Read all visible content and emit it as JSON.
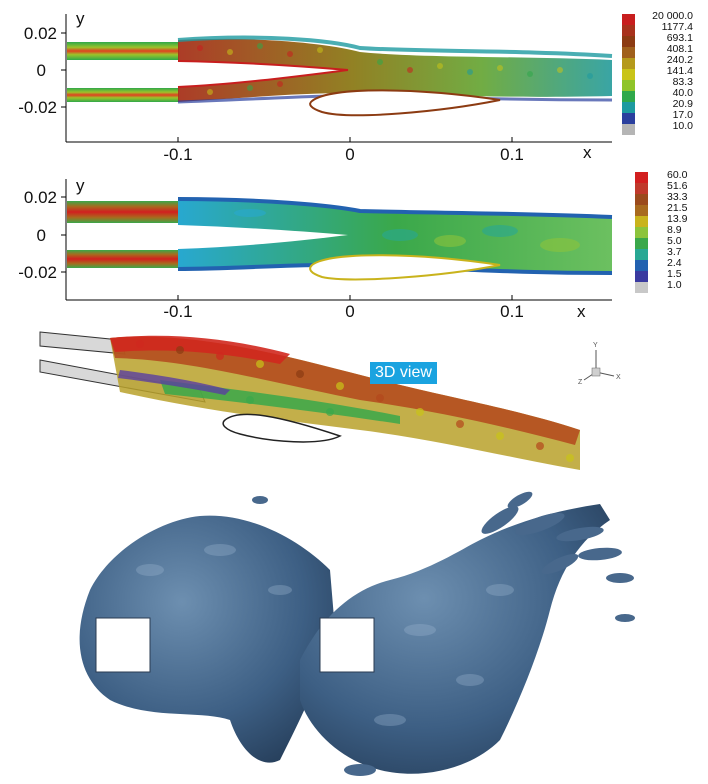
{
  "panel_top": {
    "y_axis_label": "y",
    "x_axis_label": "x",
    "y_ticks": [
      "0.02",
      "0",
      "-0.02"
    ],
    "x_ticks": [
      "-0.1",
      "0",
      "0.1"
    ],
    "colorbar": {
      "labels": [
        "20 000.0",
        "1177.4",
        "693.1",
        "408.1",
        "240.2",
        "141.4",
        "83.3",
        "40.0",
        "20.9",
        "17.0",
        "10.0"
      ],
      "colors": [
        "#c81e1e",
        "#a8321c",
        "#8c3b12",
        "#a0601c",
        "#b59a1c",
        "#c9c418",
        "#8fc429",
        "#2fa84a",
        "#1d9aa0",
        "#2a3f9e",
        "#b5b5b5"
      ]
    }
  },
  "panel_middle": {
    "y_axis_label": "y",
    "x_axis_label": "x",
    "y_ticks": [
      "0.02",
      "0",
      "-0.02"
    ],
    "x_ticks": [
      "-0.1",
      "0",
      "0.1"
    ],
    "colorbar": {
      "labels": [
        "60.0",
        "51.6",
        "33.3",
        "21.5",
        "13.9",
        "8.9",
        "5.0",
        "3.7",
        "2.4",
        "1.5",
        "1.0"
      ],
      "colors": [
        "#d21f1f",
        "#c0392b",
        "#9b4a1c",
        "#a86a1e",
        "#c9b31c",
        "#8cc43c",
        "#3aa84a",
        "#28a894",
        "#2262b0",
        "#3a3aa0",
        "#c8c8c8"
      ]
    }
  },
  "panel_3d": {
    "badge_text": "3D view",
    "axis_glyph": {
      "y": "Y",
      "x": "X",
      "z": "Z"
    }
  },
  "panel_bottom": {}
}
